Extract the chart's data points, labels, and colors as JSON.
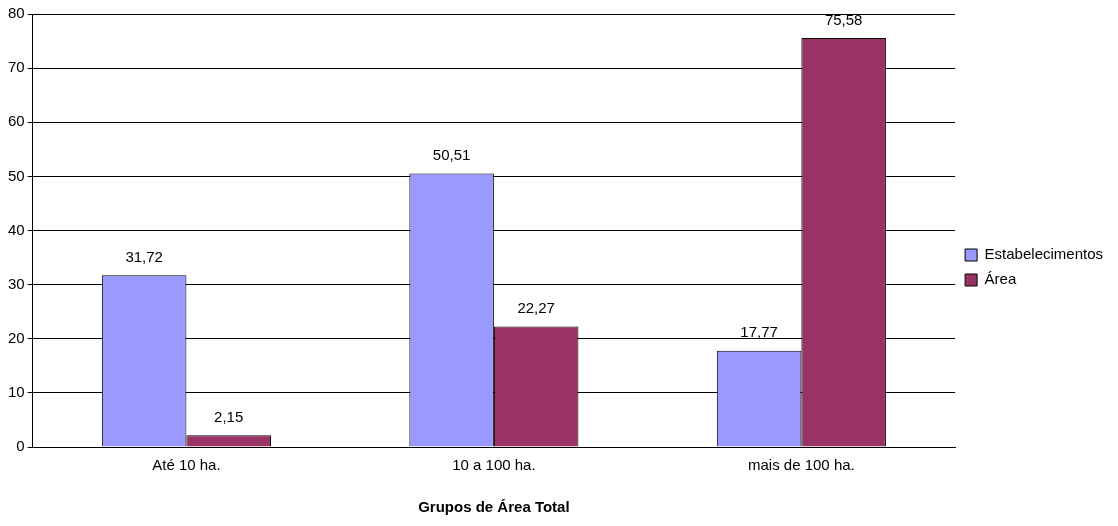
{
  "chart_data": {
    "type": "bar",
    "xlabel": "Grupos de Área Total",
    "categories": [
      "Até 10 ha.",
      "10 a 100 ha.",
      "mais de 100 ha."
    ],
    "series": [
      {
        "name": "Estabelecimentos",
        "color": "#9999ff",
        "values": [
          31.72,
          50.51,
          17.77
        ],
        "value_labels": [
          "31,72",
          "50,51",
          "17,77"
        ]
      },
      {
        "name": "Área",
        "color": "#993366",
        "values": [
          2.15,
          22.27,
          75.58
        ],
        "value_labels": [
          "2,15",
          "22,27",
          "75,58"
        ]
      }
    ],
    "ylim": [
      0,
      80
    ],
    "yticks": [
      0,
      10,
      20,
      30,
      40,
      50,
      60,
      70,
      80
    ],
    "grid": "y",
    "legend": "right"
  }
}
